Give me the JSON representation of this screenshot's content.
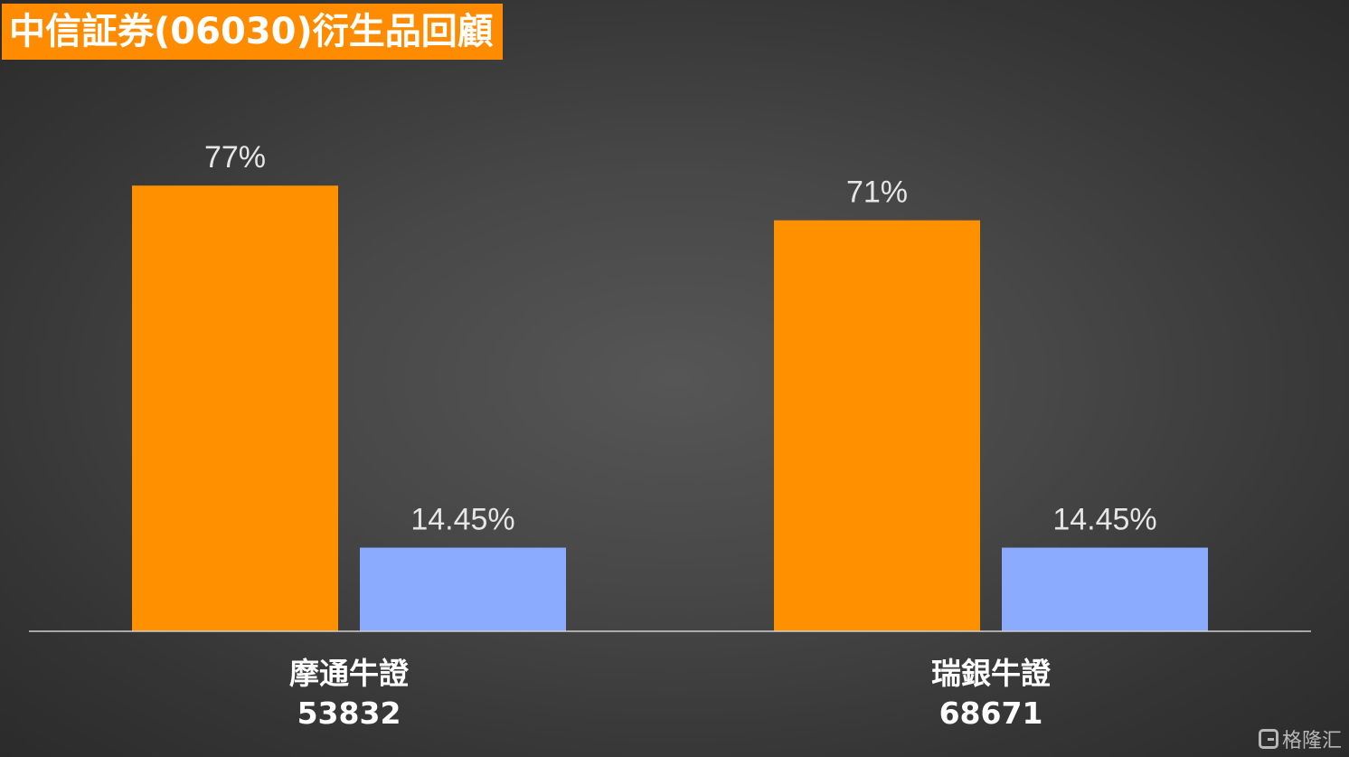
{
  "title": "中信証券(06030)衍生品回顧",
  "watermark": "格隆汇",
  "colors": {
    "primary_series": "#ff9100",
    "secondary_series": "#8aabff",
    "title_bg": "#ff8c00"
  },
  "chart_data": {
    "type": "bar",
    "categories": [
      {
        "name": "摩通牛證",
        "code": "53832"
      },
      {
        "name": "瑞銀牛證",
        "code": "68671"
      }
    ],
    "series": [
      {
        "values": [
          77,
          71
        ],
        "labels": [
          "77%",
          "71%"
        ],
        "color": "#ff9100"
      },
      {
        "values": [
          14.45,
          14.45
        ],
        "labels": [
          "14.45%",
          "14.45%"
        ],
        "color": "#8aabff"
      }
    ],
    "unit": "%",
    "ylim": [
      0,
      100
    ],
    "grid": false,
    "legend": "none"
  }
}
